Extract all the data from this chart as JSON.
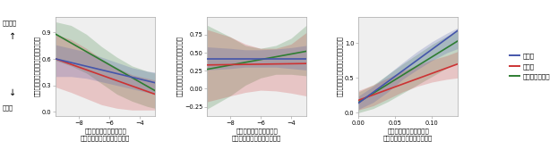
{
  "panels": [
    {
      "xlabel1": "相互作用の変動性の強さ",
      "xlabel2": "（負の密度依存的なタイプ）",
      "ylabel": "かく乱に対する生物密度の不安定性",
      "xlim": [
        -9.5,
        -3.0
      ],
      "ylim": [
        -0.05,
        1.08
      ],
      "yticks": [
        0.0,
        0.3,
        0.6,
        0.9
      ],
      "xticks": [
        -8,
        -6,
        -4
      ],
      "line_blue": [
        [
          -9.5,
          0.6
        ],
        [
          -3.0,
          0.33
        ]
      ],
      "line_red": [
        [
          -9.5,
          0.6
        ],
        [
          -3.0,
          0.2
        ]
      ],
      "line_green": [
        [
          -9.5,
          0.88
        ],
        [
          -3.0,
          0.24
        ]
      ],
      "ci_blue_x": [
        -9.5,
        -8.5,
        -7.5,
        -6.5,
        -5.5,
        -4.5,
        -3.5,
        -3.0
      ],
      "ci_blue_lo": [
        0.4,
        0.4,
        0.38,
        0.34,
        0.3,
        0.26,
        0.22,
        0.2
      ],
      "ci_blue_hi": [
        0.76,
        0.72,
        0.68,
        0.62,
        0.56,
        0.5,
        0.46,
        0.45
      ],
      "ci_red_x": [
        -9.5,
        -8.5,
        -7.5,
        -6.5,
        -5.5,
        -4.5,
        -3.5,
        -3.0
      ],
      "ci_red_lo": [
        0.28,
        0.22,
        0.15,
        0.08,
        0.04,
        0.02,
        0.02,
        0.02
      ],
      "ci_red_hi": [
        0.88,
        0.82,
        0.72,
        0.6,
        0.5,
        0.42,
        0.38,
        0.36
      ],
      "ci_green_x": [
        -9.5,
        -8.5,
        -7.5,
        -6.5,
        -5.5,
        -4.5,
        -3.5,
        -3.0
      ],
      "ci_green_lo": [
        0.58,
        0.52,
        0.44,
        0.32,
        0.2,
        0.12,
        0.06,
        0.04
      ],
      "ci_green_hi": [
        1.02,
        0.98,
        0.88,
        0.74,
        0.62,
        0.52,
        0.46,
        0.44
      ]
    },
    {
      "xlabel1": "相互作用の変動性の強さ",
      "xlabel2": "（正の密度依存的なタイプ）",
      "ylabel": "かく乱に対する生物密度の不安定性",
      "xlim": [
        -9.5,
        -3.0
      ],
      "ylim": [
        -0.38,
        1.0
      ],
      "yticks": [
        -0.25,
        0.0,
        0.25,
        0.5,
        0.75
      ],
      "xticks": [
        -8,
        -6,
        -4
      ],
      "line_blue": [
        [
          -9.5,
          0.42
        ],
        [
          -3.0,
          0.42
        ]
      ],
      "line_red": [
        [
          -9.5,
          0.33
        ],
        [
          -3.0,
          0.35
        ]
      ],
      "line_green": [
        [
          -9.5,
          0.27
        ],
        [
          -3.0,
          0.52
        ]
      ],
      "ci_blue_x": [
        -9.5,
        -8.0,
        -7.0,
        -6.0,
        -5.0,
        -4.0,
        -3.0
      ],
      "ci_blue_lo": [
        0.26,
        0.28,
        0.3,
        0.3,
        0.3,
        0.28,
        0.26
      ],
      "ci_blue_hi": [
        0.58,
        0.56,
        0.54,
        0.54,
        0.55,
        0.57,
        0.6
      ],
      "ci_red_x": [
        -9.5,
        -8.0,
        -7.0,
        -6.0,
        -5.0,
        -4.0,
        -3.0
      ],
      "ci_red_lo": [
        -0.18,
        -0.1,
        -0.05,
        -0.02,
        -0.03,
        -0.06,
        -0.1
      ],
      "ci_red_hi": [
        0.82,
        0.72,
        0.62,
        0.56,
        0.56,
        0.62,
        0.78
      ],
      "ci_green_x": [
        -9.5,
        -8.0,
        -7.0,
        -6.0,
        -5.0,
        -4.0,
        -3.0
      ],
      "ci_green_lo": [
        -0.28,
        -0.1,
        0.05,
        0.15,
        0.2,
        0.2,
        0.18
      ],
      "ci_green_hi": [
        0.88,
        0.72,
        0.6,
        0.56,
        0.6,
        0.7,
        0.88
      ]
    },
    {
      "xlabel1": "相互作用の変動性の強さ",
      "xlabel2": "（密度に依存しないタイプ）",
      "ylabel": "かく乱に対する生物密度の不安定性",
      "xlim": [
        0.0,
        0.135
      ],
      "ylim": [
        -0.05,
        1.38
      ],
      "yticks": [
        0.0,
        0.5,
        1.0
      ],
      "xticks": [
        0.0,
        0.05,
        0.1
      ],
      "line_blue": [
        [
          0.0,
          0.14
        ],
        [
          0.135,
          1.18
        ]
      ],
      "line_red": [
        [
          0.0,
          0.18
        ],
        [
          0.135,
          0.7
        ]
      ],
      "line_green": [
        [
          0.0,
          0.15
        ],
        [
          0.135,
          1.03
        ]
      ],
      "ci_blue_x": [
        0.0,
        0.02,
        0.04,
        0.06,
        0.08,
        0.1,
        0.12,
        0.135
      ],
      "ci_blue_lo": [
        0.05,
        0.15,
        0.3,
        0.48,
        0.62,
        0.75,
        0.86,
        0.92
      ],
      "ci_blue_hi": [
        0.24,
        0.38,
        0.55,
        0.72,
        0.88,
        1.02,
        1.14,
        1.22
      ],
      "ci_red_x": [
        0.0,
        0.02,
        0.04,
        0.06,
        0.08,
        0.1,
        0.12,
        0.135
      ],
      "ci_red_lo": [
        0.04,
        0.1,
        0.2,
        0.3,
        0.38,
        0.44,
        0.48,
        0.5
      ],
      "ci_red_hi": [
        0.32,
        0.4,
        0.5,
        0.6,
        0.68,
        0.76,
        0.82,
        0.88
      ],
      "ci_green_x": [
        0.0,
        0.02,
        0.04,
        0.06,
        0.08,
        0.1,
        0.12,
        0.135
      ],
      "ci_green_lo": [
        0.0,
        0.06,
        0.16,
        0.28,
        0.4,
        0.52,
        0.64,
        0.72
      ],
      "ci_green_hi": [
        0.3,
        0.4,
        0.55,
        0.7,
        0.84,
        0.98,
        1.1,
        1.18
      ]
    }
  ],
  "colors": {
    "blue": "#4455aa",
    "red": "#cc3333",
    "green": "#2e7d32"
  },
  "legend_labels": [
    "殺虫剤",
    "除草剤",
    "殺虫剤＋除草剤"
  ],
  "bg_color": "#efefef",
  "label_fontsize": 5.0,
  "tick_fontsize": 4.8,
  "left_top": "不安定化",
  "left_bot": "安定化"
}
